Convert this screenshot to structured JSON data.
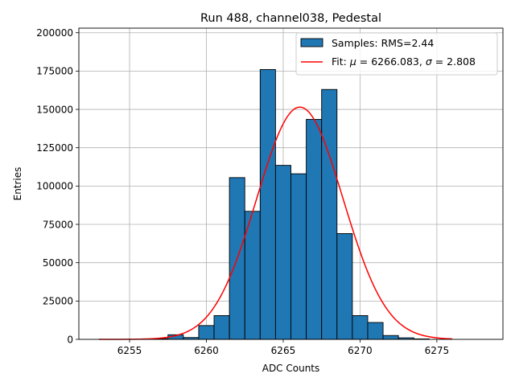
{
  "chart_data": {
    "type": "bar",
    "title": "Run 488, channel038, Pedestal",
    "xlabel": "ADC Counts",
    "ylabel": "Entries",
    "xlim": [
      6251.7,
      6279.3
    ],
    "ylim": [
      0,
      203000
    ],
    "xticks": [
      6255,
      6260,
      6265,
      6270,
      6275
    ],
    "yticks": [
      0,
      25000,
      50000,
      75000,
      100000,
      125000,
      150000,
      175000,
      200000
    ],
    "grid": true,
    "legend_position": "top-right",
    "bin_width": 1,
    "bins": [
      {
        "x": 6257,
        "count": 500
      },
      {
        "x": 6258,
        "count": 3000
      },
      {
        "x": 6259,
        "count": 1200
      },
      {
        "x": 6260,
        "count": 9000
      },
      {
        "x": 6261,
        "count": 15500
      },
      {
        "x": 6262,
        "count": 105500
      },
      {
        "x": 6263,
        "count": 83500
      },
      {
        "x": 6264,
        "count": 176000
      },
      {
        "x": 6265,
        "count": 113500
      },
      {
        "x": 6266,
        "count": 108000
      },
      {
        "x": 6267,
        "count": 143500
      },
      {
        "x": 6268,
        "count": 163000
      },
      {
        "x": 6269,
        "count": 69000
      },
      {
        "x": 6270,
        "count": 15500
      },
      {
        "x": 6271,
        "count": 11000
      },
      {
        "x": 6272,
        "count": 2500
      },
      {
        "x": 6273,
        "count": 1000
      },
      {
        "x": 6274,
        "count": 300
      }
    ],
    "fit": {
      "mu": 6266.083,
      "sigma": 2.808,
      "amplitude": 151500,
      "x_range": [
        6253,
        6276
      ]
    },
    "series": [
      {
        "name": "Samples: RMS=2.44",
        "kind": "histogram",
        "color": "#1f77b4"
      },
      {
        "name": "Fit: μ = 6266.083, σ = 2.808",
        "kind": "line",
        "color": "#ff0000"
      }
    ],
    "legend": {
      "samples_label": "Samples: RMS=2.44",
      "fit_prefix": "Fit: ",
      "fit_mu_symbol": "μ",
      "fit_mu_value": " = 6266.083, ",
      "fit_sigma_symbol": "σ",
      "fit_sigma_value": " = 2.808"
    },
    "colors": {
      "bar_fill": "#1f77b4",
      "bar_edge": "#000000",
      "fit_line": "#ff0000",
      "grid": "#b0b0b0"
    }
  }
}
